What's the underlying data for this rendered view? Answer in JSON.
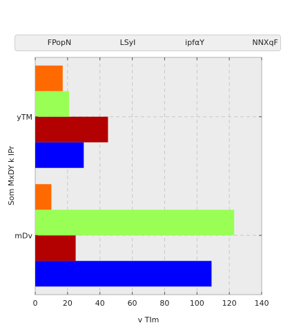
{
  "chart_data": {
    "type": "bar",
    "orientation": "horizontal",
    "categories": [
      "yTM",
      "mDv"
    ],
    "series": [
      {
        "name": "FPopN",
        "color": "#0000ff",
        "values": [
          30,
          109
        ]
      },
      {
        "name": "LSyI",
        "color": "#b30000",
        "values": [
          45,
          25
        ]
      },
      {
        "name": "ipfαY",
        "color": "#99ff55",
        "values": [
          21,
          123
        ]
      },
      {
        "name": "NNXqF",
        "color": "#ff6a00",
        "values": [
          17,
          10
        ]
      }
    ],
    "xlabel": "v TIm",
    "ylabel": "Som MxDY k IPr",
    "xlim": [
      0,
      140
    ],
    "xticks": [
      0,
      20,
      40,
      60,
      80,
      100,
      120,
      140
    ],
    "grid": true,
    "legend_position": "top"
  }
}
